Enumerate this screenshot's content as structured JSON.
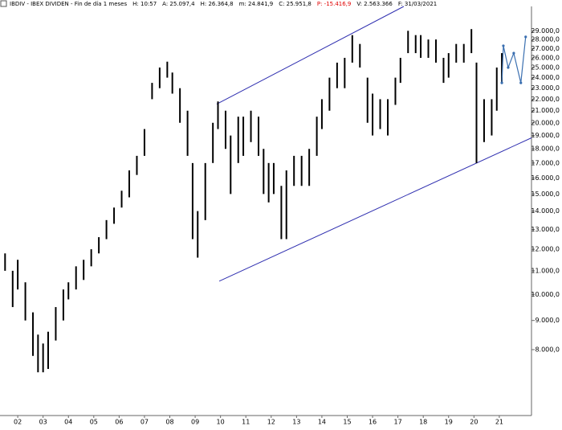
{
  "header": {
    "items": [
      {
        "text": "IBDIV - IBEX DIVIDEN - Fin de día 1 meses",
        "color": "#000000"
      },
      {
        "text": "H: 10:57",
        "color": "#000000"
      },
      {
        "text": "A: 25.097,4",
        "color": "#000000"
      },
      {
        "text": "H: 26.364,8",
        "color": "#000000"
      },
      {
        "text": "m: 24.841,9",
        "color": "#000000"
      },
      {
        "text": "C: 25.951,8",
        "color": "#000000"
      },
      {
        "text": "P: -15.416,9",
        "color": "#e00000"
      },
      {
        "text": "V: 2.563.366",
        "color": "#000000"
      },
      {
        "text": "F: 31/03/2021",
        "color": "#000000"
      }
    ]
  },
  "chart_data": {
    "type": "range_bar",
    "log_scale": true,
    "grid": false,
    "xlim": [
      2001.3,
      2022.27
    ],
    "xticks": [
      {
        "value": 2002,
        "label": "02"
      },
      {
        "value": 2003,
        "label": "03"
      },
      {
        "value": 2004,
        "label": "04"
      },
      {
        "value": 2005,
        "label": "05"
      },
      {
        "value": 2006,
        "label": "06"
      },
      {
        "value": 2007,
        "label": "07"
      },
      {
        "value": 2008,
        "label": "08"
      },
      {
        "value": 2009,
        "label": "09"
      },
      {
        "value": 2010,
        "label": "10"
      },
      {
        "value": 2011,
        "label": "11"
      },
      {
        "value": 2012,
        "label": "12"
      },
      {
        "value": 2013,
        "label": "13"
      },
      {
        "value": 2014,
        "label": "14"
      },
      {
        "value": 2015,
        "label": "15"
      },
      {
        "value": 2016,
        "label": "16"
      },
      {
        "value": 2017,
        "label": "17"
      },
      {
        "value": 2018,
        "label": "18"
      },
      {
        "value": 2019,
        "label": "19"
      },
      {
        "value": 2020,
        "label": "20"
      },
      {
        "value": 2021,
        "label": "21"
      }
    ],
    "ylim": [
      6130,
      32000
    ],
    "yticks": [
      {
        "value": 29000,
        "label": "29.000,0"
      },
      {
        "value": 28000,
        "label": "28.000,0"
      },
      {
        "value": 27000,
        "label": "27.000,0"
      },
      {
        "value": 26000,
        "label": "26.000,0"
      },
      {
        "value": 25000,
        "label": "25.000,0"
      },
      {
        "value": 24000,
        "label": "24.000,0"
      },
      {
        "value": 23000,
        "label": "23.000,0"
      },
      {
        "value": 22000,
        "label": "22.000,0"
      },
      {
        "value": 21000,
        "label": "21.000,0"
      },
      {
        "value": 20000,
        "label": "20.000,0"
      },
      {
        "value": 19000,
        "label": "19.000,0"
      },
      {
        "value": 18000,
        "label": "18.000,0"
      },
      {
        "value": 17000,
        "label": "17.000,0"
      },
      {
        "value": 16000,
        "label": "16.000,0"
      },
      {
        "value": 15000,
        "label": "15.000,0"
      },
      {
        "value": 14000,
        "label": "14.000,0"
      },
      {
        "value": 13000,
        "label": "13.000,0"
      },
      {
        "value": 12000,
        "label": "12.000,0"
      },
      {
        "value": 11000,
        "label": "11.000,0"
      },
      {
        "value": 10000,
        "label": "10.000,0"
      },
      {
        "value": 9000,
        "label": "9.000,0"
      },
      {
        "value": 8000,
        "label": "8.000,0"
      }
    ],
    "bars": {
      "color": "#000000",
      "x": [
        2001.5,
        2001.8,
        2002.0,
        2002.3,
        2002.6,
        2002.8,
        2003.0,
        2003.2,
        2003.5,
        2003.8,
        2004.0,
        2004.3,
        2004.6,
        2004.9,
        2005.2,
        2005.5,
        2005.8,
        2006.1,
        2006.4,
        2006.7,
        2007.0,
        2007.3,
        2007.6,
        2007.9,
        2008.1,
        2008.4,
        2008.7,
        2008.9,
        2009.1,
        2009.4,
        2009.7,
        2009.9,
        2010.2,
        2010.4,
        2010.7,
        2010.9,
        2011.2,
        2011.5,
        2011.7,
        2011.9,
        2012.1,
        2012.4,
        2012.6,
        2012.9,
        2013.2,
        2013.5,
        2013.8,
        2014.0,
        2014.3,
        2014.6,
        2014.9,
        2015.2,
        2015.5,
        2015.8,
        2016.0,
        2016.3,
        2016.6,
        2016.9,
        2017.1,
        2017.4,
        2017.7,
        2017.9,
        2018.2,
        2018.5,
        2018.8,
        2019.0,
        2019.3,
        2019.6,
        2019.9,
        2020.1,
        2020.4,
        2020.7,
        2020.9,
        2021.1
      ],
      "high": [
        11800,
        11000,
        11500,
        10500,
        9300,
        8500,
        8200,
        8600,
        9500,
        10200,
        10500,
        11200,
        11500,
        12000,
        12600,
        13500,
        14200,
        15200,
        16500,
        17500,
        19500,
        23500,
        25000,
        25600,
        24500,
        23000,
        21000,
        17000,
        14000,
        17000,
        20000,
        21800,
        21000,
        19000,
        20500,
        20500,
        21000,
        20500,
        18000,
        17000,
        17000,
        15500,
        16500,
        17500,
        17500,
        18000,
        20500,
        22000,
        24000,
        25500,
        26000,
        28500,
        27500,
        24000,
        22500,
        22000,
        22000,
        24000,
        26000,
        29000,
        28500,
        28500,
        28000,
        28000,
        26000,
        26500,
        27500,
        27500,
        29200,
        25500,
        22000,
        22000,
        25000,
        26500
      ],
      "low": [
        11000,
        9500,
        10200,
        9000,
        7800,
        7300,
        7300,
        7400,
        8300,
        9000,
        9800,
        10200,
        10600,
        11200,
        11800,
        12500,
        13300,
        14200,
        14800,
        16200,
        17500,
        22000,
        23000,
        24000,
        22500,
        20000,
        17500,
        12500,
        11600,
        13500,
        17000,
        19500,
        18000,
        15000,
        17000,
        17500,
        18500,
        17500,
        15000,
        14500,
        15000,
        12500,
        12500,
        15500,
        15500,
        15500,
        17500,
        19500,
        21000,
        23000,
        23000,
        25500,
        25000,
        20000,
        19000,
        19500,
        19000,
        21500,
        23500,
        26500,
        26500,
        26000,
        26000,
        25500,
        23500,
        24000,
        25500,
        25500,
        26500,
        17000,
        18500,
        19000,
        21000,
        23500
      ]
    },
    "projection": {
      "color": "#3a6fb0",
      "x": [
        2021.1,
        2021.16,
        2021.35,
        2021.57,
        2021.85,
        2022.04
      ],
      "values": [
        23500,
        27300,
        25000,
        26500,
        23500,
        28300
      ]
    },
    "channel_lines": [
      {
        "color": "#3030b0",
        "x": [
          2009.85,
          2017.23
        ],
        "values": [
          21570,
          32000
        ]
      },
      {
        "color": "#3030b0",
        "x": [
          2009.95,
          2022.27
        ],
        "values": [
          10550,
          18820
        ]
      }
    ]
  }
}
